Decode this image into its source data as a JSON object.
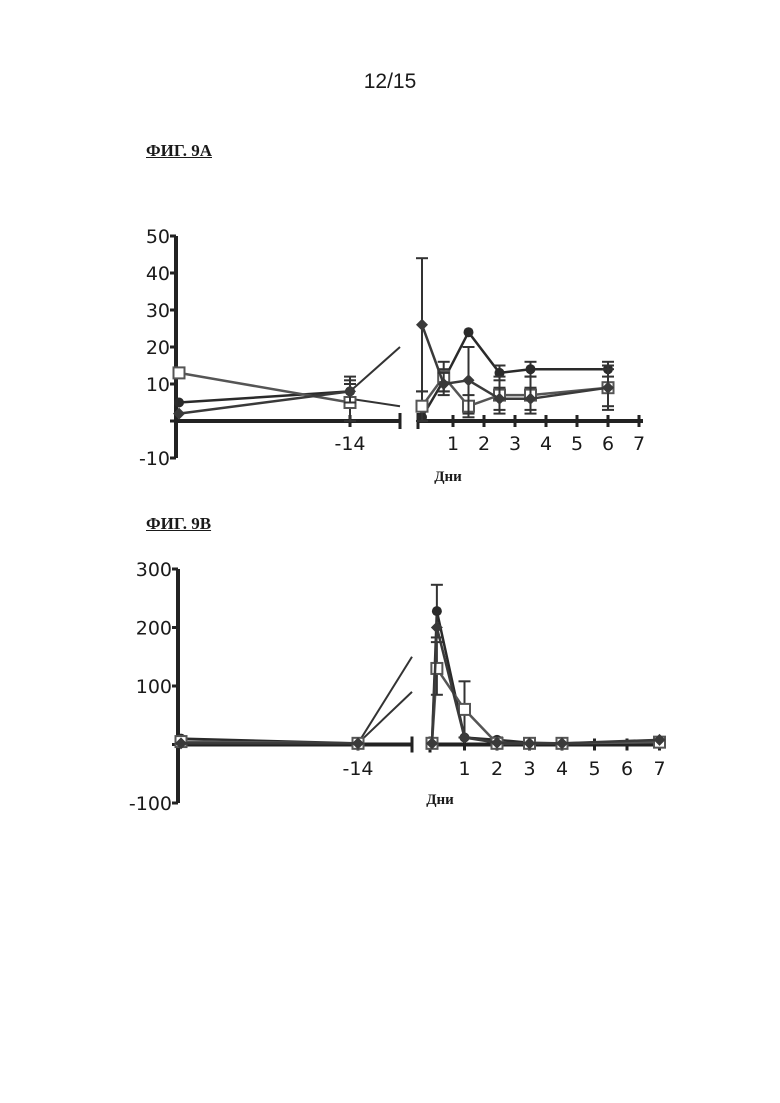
{
  "page": {
    "number": "12/15"
  },
  "chart_data": [
    {
      "type": "line",
      "title": "ФИГ. 9А",
      "xlabel": "Дни",
      "ylabel": "",
      "ylim": [
        -10,
        50
      ],
      "y_ticks": [
        "50",
        "40",
        "30",
        "20",
        "10",
        "-10"
      ],
      "y_tick_values": [
        50,
        40,
        30,
        20,
        10,
        -10
      ],
      "x_ticks": [
        "-14",
        "1",
        "2",
        "3",
        "4",
        "5",
        "6",
        "7"
      ],
      "x_tick_values": [
        -14,
        1,
        2,
        3,
        4,
        5,
        6,
        7
      ],
      "axis_break": "between -14 and 0",
      "grid": false,
      "series": [
        {
          "marker": "filled-circle",
          "color": "#2a2a2a",
          "x": [
            -28,
            -14,
            0,
            0.7,
            1.5,
            2.5,
            3.5,
            6
          ],
          "y": [
            5,
            8,
            1,
            11,
            24,
            13,
            14,
            14
          ],
          "err": [
            0,
            4,
            0,
            3,
            0,
            2,
            2,
            2
          ]
        },
        {
          "marker": "open-square",
          "color": "#555555",
          "x": [
            -28,
            -14,
            0,
            0.7,
            1.5,
            2.5,
            3.5,
            6
          ],
          "y": [
            13,
            5,
            4,
            12,
            4,
            7,
            7,
            9
          ],
          "err": [
            0,
            5,
            4,
            4,
            3,
            5,
            5,
            6
          ]
        },
        {
          "marker": "filled-diamond",
          "color": "#3a3a3a",
          "x": [
            -28,
            -14,
            0,
            0.7,
            1.5,
            2.5,
            3.5,
            6
          ],
          "y": [
            2,
            8,
            26,
            10,
            11,
            6,
            6,
            9
          ],
          "err": [
            0,
            3,
            18,
            3,
            9,
            3,
            3,
            5
          ]
        }
      ],
      "break_lines": [
        {
          "from": [
            -14,
            8
          ],
          "to": [
            -6,
            20
          ]
        },
        {
          "from": [
            -14,
            6
          ],
          "to": [
            -6,
            4
          ]
        }
      ]
    },
    {
      "type": "line",
      "title": "ФИГ. 9В",
      "xlabel": "Дни",
      "ylabel": "",
      "ylim": [
        -100,
        300
      ],
      "y_ticks": [
        "300",
        "200",
        "100",
        "-100"
      ],
      "y_tick_values": [
        300,
        200,
        100,
        -100
      ],
      "x_ticks": [
        "-14",
        "1",
        "2",
        "3",
        "4",
        "5",
        "6",
        "7"
      ],
      "x_tick_values": [
        -14,
        1,
        2,
        3,
        4,
        5,
        6,
        7
      ],
      "axis_break": "between -14 and 0",
      "grid": false,
      "series": [
        {
          "marker": "filled-circle",
          "color": "#2a2a2a",
          "x": [
            -28,
            -14,
            0,
            0.15,
            1,
            2,
            3,
            4,
            7
          ],
          "y": [
            10,
            2,
            3,
            228,
            12,
            8,
            3,
            2,
            6
          ],
          "err": [
            0,
            0,
            0,
            45,
            0,
            4,
            2,
            2,
            2
          ]
        },
        {
          "marker": "open-square",
          "color": "#555555",
          "x": [
            -28,
            -14,
            0,
            0.15,
            1,
            2,
            3,
            4,
            7
          ],
          "y": [
            5,
            2,
            2,
            130,
            60,
            2,
            2,
            2,
            4
          ],
          "err": [
            0,
            0,
            0,
            45,
            48,
            2,
            2,
            2,
            2
          ]
        },
        {
          "marker": "filled-diamond",
          "color": "#3a3a3a",
          "x": [
            -28,
            -14,
            0,
            0.15,
            1,
            2,
            3,
            4,
            7
          ],
          "y": [
            2,
            2,
            2,
            200,
            12,
            3,
            2,
            2,
            8
          ],
          "err": [
            0,
            0,
            0,
            0,
            0,
            0,
            0,
            0,
            0
          ]
        }
      ],
      "break_lines": [
        {
          "from": [
            -14,
            2
          ],
          "to": [
            -6,
            150
          ]
        },
        {
          "from": [
            -14,
            2
          ],
          "to": [
            -6,
            90
          ]
        }
      ]
    }
  ]
}
